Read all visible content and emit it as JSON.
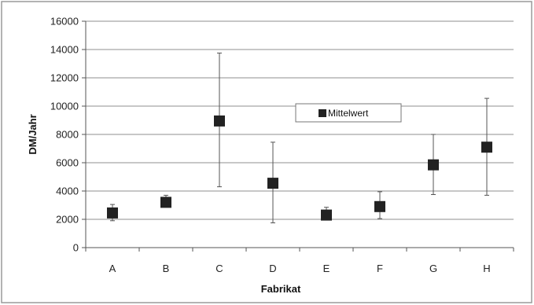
{
  "chart_data": {
    "type": "scatter",
    "categories": [
      "A",
      "B",
      "C",
      "D",
      "E",
      "F",
      "G",
      "H"
    ],
    "series": [
      {
        "name": "Mittelwert",
        "values": [
          2450,
          3200,
          8950,
          4550,
          2300,
          2900,
          5850,
          7100
        ],
        "error_low": [
          1900,
          2950,
          4300,
          1750,
          2000,
          2050,
          3750,
          3700
        ],
        "error_high": [
          3050,
          3700,
          13750,
          7450,
          2850,
          3950,
          8000,
          10550
        ]
      }
    ],
    "xlabel": "Fabrikat",
    "ylabel": "DM/Jahr",
    "ylim": [
      0,
      16000
    ],
    "yticks": [
      0,
      2000,
      4000,
      6000,
      8000,
      10000,
      12000,
      14000,
      16000
    ],
    "grid": "horizontal",
    "legend": "inside-top-center",
    "marker": "square",
    "colors": {
      "marker": "#222222",
      "grid": "#8f8f8f",
      "error_bar": "#555555",
      "frame": "#9a9a9a"
    }
  }
}
